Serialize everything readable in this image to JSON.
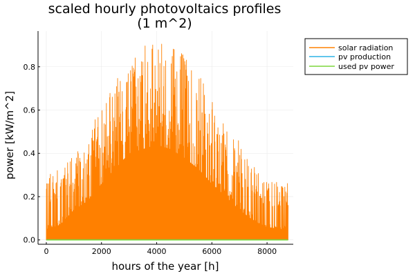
{
  "chart_data": {
    "type": "line",
    "title_lines": [
      "scaled hourly photovoltaics profiles",
      "(1 m^2)"
    ],
    "xlabel": "hours of the year [h]",
    "ylabel": "power [kW/m^2]",
    "xlim": [
      -300,
      8950
    ],
    "ylim": [
      -0.02,
      0.965
    ],
    "xticks": [
      0,
      2000,
      4000,
      6000,
      8000
    ],
    "yticks": [
      0.0,
      0.2,
      0.4,
      0.6,
      0.8
    ],
    "xtick_labels": [
      "0",
      "2000",
      "4000",
      "6000",
      "8000"
    ],
    "ytick_labels": [
      "0.0",
      "0.2",
      "0.4",
      "0.6",
      "0.8"
    ],
    "grid": true,
    "legend_position": "outer-top-right",
    "series": [
      {
        "name": "solar radiation",
        "color": "#ff8000",
        "description_envelope": {
          "x": [
            0,
            500,
            1000,
            1500,
            2000,
            2500,
            3000,
            3500,
            4000,
            4500,
            5000,
            5500,
            6000,
            6500,
            7000,
            7500,
            8000,
            8500,
            8760
          ],
          "peak": [
            0.3,
            0.33,
            0.4,
            0.5,
            0.62,
            0.76,
            0.83,
            0.94,
            0.91,
            0.93,
            0.86,
            0.8,
            0.68,
            0.56,
            0.46,
            0.34,
            0.28,
            0.27,
            0.26
          ],
          "fill_floor": [
            0.05,
            0.07,
            0.14,
            0.18,
            0.26,
            0.33,
            0.4,
            0.42,
            0.44,
            0.42,
            0.38,
            0.33,
            0.26,
            0.2,
            0.14,
            0.09,
            0.06,
            0.05,
            0.05
          ]
        }
      },
      {
        "name": "pv production",
        "color": "#2bb3e6",
        "value": 0.0
      },
      {
        "name": "used pv power",
        "color": "#7bd63a",
        "value": 0.0
      }
    ]
  }
}
